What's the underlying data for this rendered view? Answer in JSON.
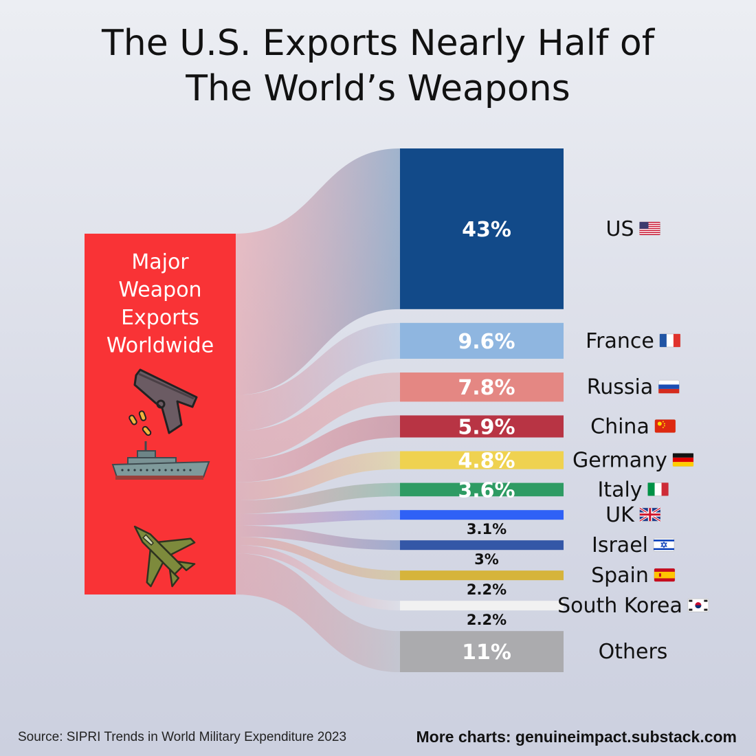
{
  "title": {
    "line1": "The U.S. Exports Nearly Half of",
    "line2": "The World’s Weapons"
  },
  "source_node": {
    "label_lines": [
      "Major",
      "Weapon",
      "Exports",
      "Worldwide"
    ],
    "color": "#f93336",
    "icons": [
      "pistol-icon",
      "warship-icon",
      "fighter-jet-icon"
    ]
  },
  "chart_data": {
    "type": "sankey",
    "source": "Major Weapon Exports Worldwide",
    "unit": "%",
    "targets": [
      {
        "name": "US",
        "value": 43,
        "label": "43%",
        "color": "#124a89",
        "flag": "us-flag-icon",
        "label_position": "inside"
      },
      {
        "name": "France",
        "value": 9.6,
        "label": "9.6%",
        "color": "#8fb6e0",
        "flag": "france-flag-icon",
        "label_position": "inside"
      },
      {
        "name": "Russia",
        "value": 7.8,
        "label": "7.8%",
        "color": "#e48783",
        "flag": "russia-flag-icon",
        "label_position": "inside"
      },
      {
        "name": "China",
        "value": 5.9,
        "label": "5.9%",
        "color": "#b83444",
        "flag": "china-flag-icon",
        "label_position": "inside"
      },
      {
        "name": "Germany",
        "value": 4.8,
        "label": "4.8%",
        "color": "#efd250",
        "flag": "germany-flag-icon",
        "label_position": "inside"
      },
      {
        "name": "Italy",
        "value": 3.6,
        "label": "3.6%",
        "color": "#2e9b63",
        "flag": "italy-flag-icon",
        "label_position": "inside"
      },
      {
        "name": "UK",
        "value": 3.1,
        "label": "3.1%",
        "color": "#2f61f6",
        "flag": "uk-flag-icon",
        "label_position": "below"
      },
      {
        "name": "Israel",
        "value": 3,
        "label": "3%",
        "color": "#3457a7",
        "flag": "israel-flag-icon",
        "label_position": "below"
      },
      {
        "name": "Spain",
        "value": 2.2,
        "label": "2.2%",
        "color": "#d6b43b",
        "flag": "spain-flag-icon",
        "label_position": "below"
      },
      {
        "name": "South Korea",
        "value": 2.2,
        "label": "2.2%",
        "color": "#f1f1f1",
        "flag": "south-korea-flag-icon",
        "label_position": "below"
      },
      {
        "name": "Others",
        "value": 11,
        "label": "11%",
        "color": "#ababae",
        "flag": "",
        "label_position": "inside"
      }
    ]
  },
  "footer": {
    "source": "Source: SIPRI Trends in World Military Expenditure 2023",
    "more": "More charts: genuineimpact.substack.com"
  }
}
